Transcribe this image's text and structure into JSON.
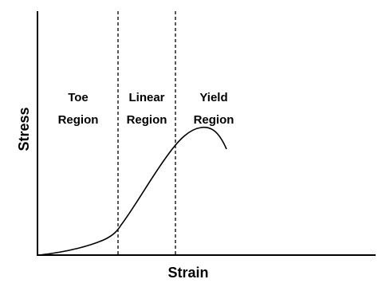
{
  "axes": {
    "x_label": "Strain",
    "y_label": "Stress"
  },
  "regions": [
    {
      "lines": [
        "Toe",
        "Region"
      ]
    },
    {
      "lines": [
        "Linear",
        "Region"
      ]
    },
    {
      "lines": [
        "Yield",
        "Region"
      ]
    }
  ]
}
